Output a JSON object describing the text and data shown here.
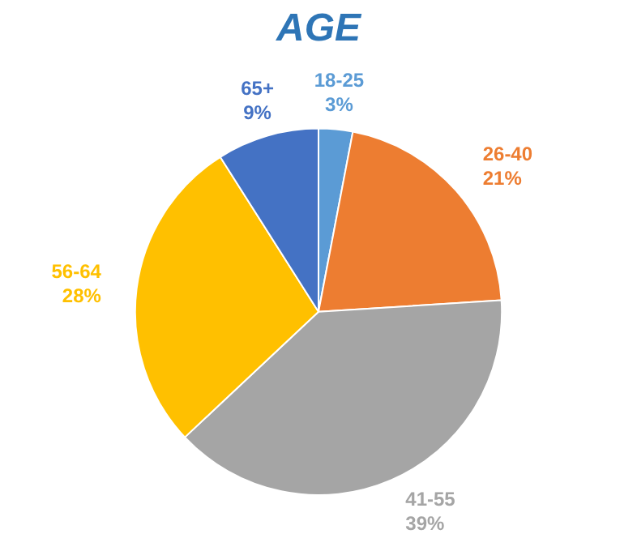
{
  "chart_data": {
    "type": "pie",
    "title": "AGE",
    "categories": [
      "18-25",
      "26-40",
      "41-55",
      "56-64",
      "65+"
    ],
    "values": [
      3,
      21,
      39,
      28,
      9
    ],
    "value_labels": [
      "3%",
      "21%",
      "39%",
      "28%",
      "9%"
    ],
    "colors": [
      "#5b9bd5",
      "#ed7d31",
      "#a5a5a5",
      "#ffc000",
      "#4472c4"
    ],
    "legend": false
  }
}
